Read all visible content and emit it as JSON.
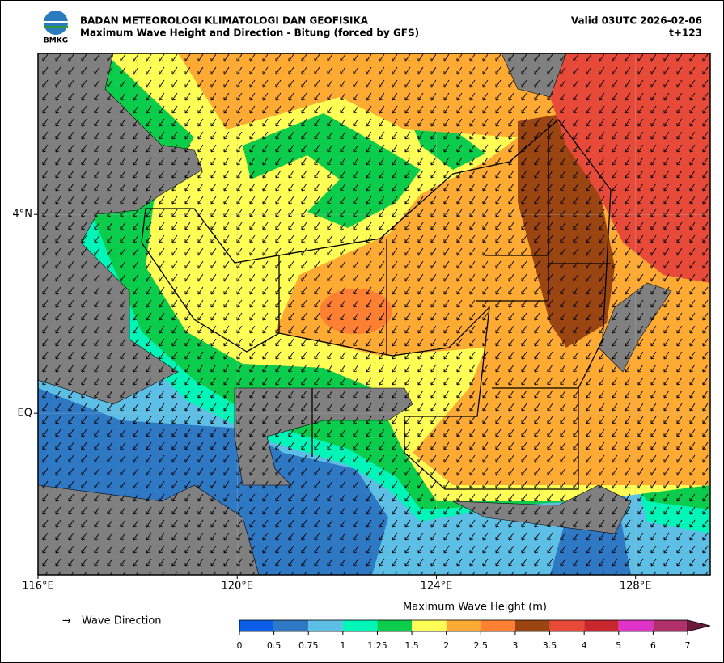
{
  "header": {
    "agency": "BADAN METEOROLOGI KLIMATOLOGI DAN GEOFISIKA",
    "title": "Maximum Wave Height and Direction - Bitung (forced by GFS)",
    "valid": "Valid 03UTC 2026-02-06",
    "lead": "t+123",
    "logo": "BMKG"
  },
  "map": {
    "xlim": [
      116,
      129.5
    ],
    "ylim": [
      -3.25,
      7.24
    ],
    "grid": true,
    "xticks": [
      {
        "value": 116,
        "label": "116°E"
      },
      {
        "value": 120,
        "label": "120°E"
      },
      {
        "value": 124,
        "label": "124°E"
      },
      {
        "value": 128,
        "label": "128°E"
      }
    ],
    "yticks": [
      {
        "value": 0,
        "label": "EQ"
      },
      {
        "value": 4,
        "label": "4°N"
      }
    ]
  },
  "colorbar": {
    "label": "Maximum Wave Height (m)",
    "ticks": [
      0,
      0.5,
      0.75,
      1,
      1.25,
      1.5,
      2,
      2.5,
      3,
      3.5,
      4,
      5,
      6,
      7
    ],
    "colors": [
      "#0a5ee8",
      "#2f78c4",
      "#5ebfe6",
      "#00f5b8",
      "#0ccc4c",
      "#ffff55",
      "#ffaa33",
      "#ff8033",
      "#9b4513",
      "#e84a3a",
      "#c8282d",
      "#e033c8",
      "#b0306a"
    ],
    "extend_color": "#6b1a3a"
  },
  "legend": {
    "symbol": "→",
    "label": "Wave Direction"
  }
}
